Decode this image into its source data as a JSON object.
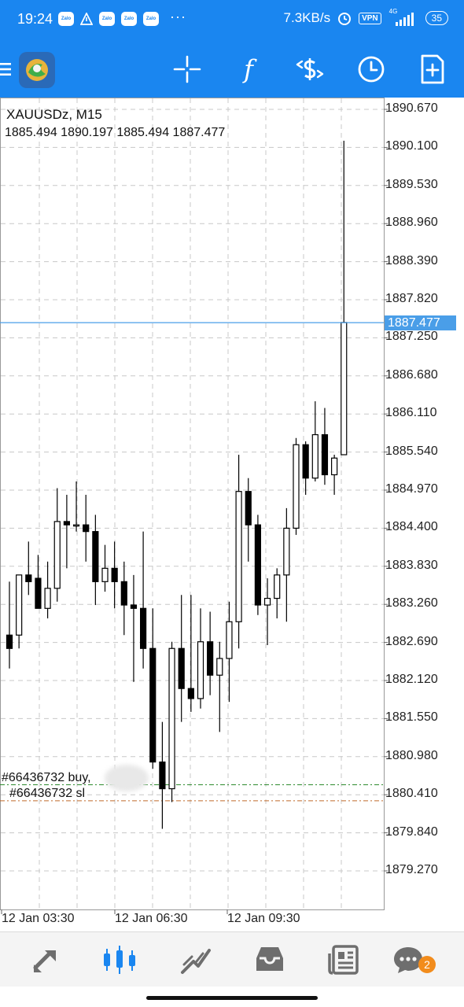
{
  "status_bar": {
    "time": "19:24",
    "zalo_label": "Zalo",
    "dots": "···",
    "network_speed": "7.3KB/s",
    "vpn": "VPN",
    "signal": "4G",
    "battery": "35"
  },
  "toolbar": {
    "tools": [
      "crosshair-icon",
      "function-icon",
      "trade-icon",
      "clock-icon",
      "new-order-icon"
    ],
    "function_glyph": "f"
  },
  "chart": {
    "symbol": "XAUUSDz, M15",
    "ohlc": "1885.494 1890.197 1885.494 1887.477",
    "price_labels": [
      "1890.670",
      "1890.100",
      "1889.530",
      "1888.960",
      "1888.390",
      "1887.820",
      "1887.250",
      "1886.680",
      "1886.110",
      "1885.540",
      "1884.970",
      "1884.400",
      "1883.830",
      "1883.260",
      "1882.690",
      "1882.120",
      "1881.550",
      "1880.980",
      "1880.410",
      "1879.840",
      "1879.270"
    ],
    "current_price": "1887.477",
    "time_labels": [
      "12 Jan 03:30",
      "12 Jan 06:30",
      "12 Jan 09:30"
    ],
    "order_buy": "#66436732 buy,",
    "order_sl": "#66436732 sl",
    "colors": {
      "current_line": "#4a9ee8",
      "buy_line": "#2e8b2e",
      "sl_line": "#c06a2a",
      "grid": "#c8c8c8"
    }
  },
  "chart_data": {
    "type": "candlestick",
    "title": "XAUUSDz, M15",
    "ylim": [
      1879.0,
      1891.0
    ],
    "x": [
      "12 Jan 03:30",
      "12 Jan 06:30",
      "12 Jan 09:30"
    ],
    "candles": [
      {
        "o": 1882.8,
        "h": 1883.6,
        "l": 1882.3,
        "c": 1882.6
      },
      {
        "o": 1882.8,
        "h": 1883.7,
        "l": 1882.6,
        "c": 1883.7
      },
      {
        "o": 1883.7,
        "h": 1884.2,
        "l": 1883.4,
        "c": 1883.6
      },
      {
        "o": 1883.65,
        "h": 1884.0,
        "l": 1883.25,
        "c": 1883.2
      },
      {
        "o": 1883.2,
        "h": 1883.9,
        "l": 1883.05,
        "c": 1883.5
      },
      {
        "o": 1883.5,
        "h": 1885.0,
        "l": 1883.3,
        "c": 1884.5
      },
      {
        "o": 1884.5,
        "h": 1884.9,
        "l": 1883.8,
        "c": 1884.45
      },
      {
        "o": 1884.45,
        "h": 1885.1,
        "l": 1884.35,
        "c": 1884.45
      },
      {
        "o": 1884.45,
        "h": 1884.9,
        "l": 1883.9,
        "c": 1884.35
      },
      {
        "o": 1884.35,
        "h": 1884.6,
        "l": 1883.25,
        "c": 1883.6
      },
      {
        "o": 1883.6,
        "h": 1884.15,
        "l": 1883.45,
        "c": 1883.8
      },
      {
        "o": 1883.8,
        "h": 1884.2,
        "l": 1883.2,
        "c": 1883.6
      },
      {
        "o": 1883.6,
        "h": 1883.9,
        "l": 1882.8,
        "c": 1883.25
      },
      {
        "o": 1883.25,
        "h": 1883.7,
        "l": 1882.1,
        "c": 1883.2
      },
      {
        "o": 1883.2,
        "h": 1884.35,
        "l": 1882.3,
        "c": 1882.6
      },
      {
        "o": 1882.6,
        "h": 1883.2,
        "l": 1880.8,
        "c": 1880.9
      },
      {
        "o": 1880.9,
        "h": 1881.5,
        "l": 1879.9,
        "c": 1880.5
      },
      {
        "o": 1880.5,
        "h": 1882.7,
        "l": 1880.3,
        "c": 1882.6
      },
      {
        "o": 1882.6,
        "h": 1883.4,
        "l": 1881.5,
        "c": 1882.0
      },
      {
        "o": 1882.0,
        "h": 1883.4,
        "l": 1881.65,
        "c": 1881.85
      },
      {
        "o": 1881.85,
        "h": 1883.2,
        "l": 1881.7,
        "c": 1882.7
      },
      {
        "o": 1882.7,
        "h": 1883.15,
        "l": 1881.9,
        "c": 1882.2
      },
      {
        "o": 1882.2,
        "h": 1882.7,
        "l": 1881.35,
        "c": 1882.45
      },
      {
        "o": 1882.45,
        "h": 1883.3,
        "l": 1881.8,
        "c": 1883.0
      },
      {
        "o": 1883.0,
        "h": 1885.5,
        "l": 1882.6,
        "c": 1884.95
      },
      {
        "o": 1884.95,
        "h": 1885.15,
        "l": 1883.9,
        "c": 1884.45
      },
      {
        "o": 1884.45,
        "h": 1884.6,
        "l": 1883.1,
        "c": 1883.25
      },
      {
        "o": 1883.25,
        "h": 1883.65,
        "l": 1882.65,
        "c": 1883.35
      },
      {
        "o": 1883.35,
        "h": 1883.8,
        "l": 1883.05,
        "c": 1883.7
      },
      {
        "o": 1883.7,
        "h": 1884.7,
        "l": 1883.0,
        "c": 1884.4
      },
      {
        "o": 1884.4,
        "h": 1885.75,
        "l": 1884.3,
        "c": 1885.65
      },
      {
        "o": 1885.65,
        "h": 1885.7,
        "l": 1884.9,
        "c": 1885.15
      },
      {
        "o": 1885.15,
        "h": 1886.3,
        "l": 1885.1,
        "c": 1885.8
      },
      {
        "o": 1885.8,
        "h": 1886.2,
        "l": 1885.05,
        "c": 1885.2
      },
      {
        "o": 1885.2,
        "h": 1885.5,
        "l": 1884.9,
        "c": 1885.45
      },
      {
        "o": 1885.5,
        "h": 1890.2,
        "l": 1885.5,
        "c": 1887.48
      }
    ],
    "lines": {
      "current": 1887.477,
      "buy": 1880.56,
      "sl": 1880.32
    },
    "grid": true
  },
  "bottom_nav": {
    "items": [
      "quotes-icon",
      "chart-icon",
      "trade-nav-icon",
      "history-icon",
      "news-icon",
      "chat-icon"
    ],
    "chat_badge": "2"
  }
}
